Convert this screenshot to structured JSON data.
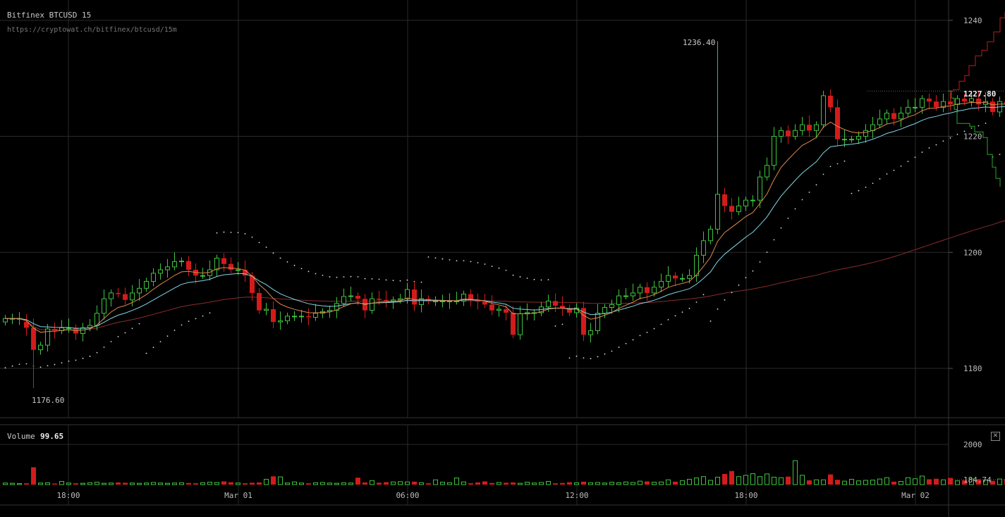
{
  "header": {
    "title": "Bitfinex BTCUSD 15",
    "url": "https://cryptowat.ch/bitfinex/btcusd/15m"
  },
  "volume_panel": {
    "label": "Volume",
    "value": "99.65",
    "close_icon": "close-icon"
  },
  "colors": {
    "up": "#3ec43e",
    "down": "#d41b1b",
    "ema_fast": "#e0894a",
    "ema_mid": "#7fd6e6",
    "sma_slow": "#8a2c2c",
    "psar": "#dddddd",
    "grid": "#2a2a2a",
    "background": "#000000"
  },
  "chart_data": {
    "type": "candlestick",
    "title": "Bitfinex BTCUSD 15",
    "y_ticks": [
      "1240",
      "1220",
      "1200",
      "1180"
    ],
    "y_tick_values": [
      1240,
      1220,
      1200,
      1180
    ],
    "ylim": [
      1171.5,
      1243.5
    ],
    "current_price": "1227.80",
    "annotations": {
      "high": "1236.40",
      "low": "1176.60"
    },
    "x_ticks": [
      "18:00",
      "Mar 01",
      "06:00",
      "12:00",
      "18:00",
      "Mar 02"
    ],
    "candles": {
      "open": [
        1188.0,
        1188.5,
        1188.6,
        1188.0,
        1187.0,
        1183.2,
        1184.0,
        1186.8,
        1186.5,
        1187.0,
        1187.0,
        1186.0,
        1187.0,
        1187.4,
        1189.5,
        1192.0,
        1193.0,
        1192.8,
        1191.8,
        1193.0,
        1193.8,
        1195.0,
        1196.4,
        1197.0,
        1197.5,
        1198.4,
        1198.5,
        1197.0,
        1196.0,
        1196.0,
        1197.0,
        1199.0,
        1198.0,
        1197.0,
        1197.0,
        1196.0,
        1193.0,
        1190.0,
        1190.2,
        1188.0,
        1188.2,
        1189.0,
        1189.0,
        1189.0,
        1188.8,
        1189.5,
        1189.8,
        1190.0,
        1191.2,
        1192.4,
        1192.5,
        1192.0,
        1190.0,
        1192.0,
        1191.8,
        1191.6,
        1191.8,
        1192.0,
        1193.6,
        1191.0,
        1192.0,
        1191.6,
        1191.6,
        1191.6,
        1191.6,
        1191.6,
        1192.8,
        1191.8,
        1191.5,
        1191.0,
        1190.0,
        1190.2,
        1189.6,
        1185.8,
        1189.4,
        1189.6,
        1189.6,
        1190.6,
        1191.6,
        1190.8,
        1190.4,
        1189.6,
        1190.4,
        1185.8,
        1186.5,
        1189.5,
        1190.5,
        1191.0,
        1192.5,
        1192.5,
        1193.0,
        1194.0,
        1193.0,
        1194.0,
        1195.0,
        1196.0,
        1195.5,
        1195.5,
        1196.0,
        1199.5,
        1202.0,
        1204.0,
        1210.0,
        1208.0,
        1207.0,
        1208.0,
        1209.0,
        1209.0,
        1213.0,
        1215.0,
        1220.0,
        1221.0,
        1220.0,
        1221.0,
        1222.0,
        1221.0,
        1222.0,
        1227.0,
        1225.0,
        1219.5,
        1219.5,
        1219.5,
        1220.0,
        1221.0,
        1222.0,
        1223.0,
        1224.0,
        1223.0,
        1224.0,
        1225.0,
        1225.0,
        1226.5,
        1226.0,
        1225.0,
        1226.0,
        1225.5,
        1226.5,
        1226.0,
        1226.5,
        1225.5,
        1226.0,
        1224.2,
        1226.0,
        1225.5,
        1226.0,
        1226.0,
        1225.0,
        1224.5,
        1223.0,
        1223.0,
        1224.0,
        1224.5,
        1225.0,
        1225.8,
        1226.5
      ],
      "close": [
        1188.6,
        1188.6,
        1188.6,
        1187.0,
        1183.2,
        1184.0,
        1186.8,
        1186.5,
        1187.0,
        1187.0,
        1186.0,
        1187.0,
        1187.4,
        1189.5,
        1192.0,
        1193.0,
        1192.8,
        1191.8,
        1193.0,
        1193.8,
        1195.0,
        1196.4,
        1197.0,
        1197.5,
        1198.4,
        1198.5,
        1197.0,
        1196.0,
        1196.0,
        1197.0,
        1199.0,
        1198.0,
        1197.0,
        1197.0,
        1196.0,
        1193.0,
        1190.0,
        1190.2,
        1188.0,
        1188.2,
        1189.0,
        1189.0,
        1189.0,
        1188.8,
        1189.5,
        1189.8,
        1190.0,
        1191.2,
        1192.4,
        1192.5,
        1192.0,
        1190.0,
        1192.0,
        1191.8,
        1191.6,
        1191.8,
        1192.0,
        1193.6,
        1191.0,
        1192.0,
        1191.6,
        1191.6,
        1191.6,
        1191.6,
        1191.6,
        1192.8,
        1191.8,
        1191.5,
        1191.0,
        1190.0,
        1190.2,
        1189.6,
        1185.8,
        1189.4,
        1189.6,
        1189.6,
        1190.6,
        1191.6,
        1190.8,
        1190.4,
        1189.6,
        1190.4,
        1185.8,
        1186.5,
        1189.5,
        1190.5,
        1191.0,
        1192.5,
        1192.5,
        1193.0,
        1194.0,
        1193.0,
        1194.0,
        1195.0,
        1196.0,
        1195.5,
        1195.5,
        1196.0,
        1199.5,
        1202.0,
        1204.0,
        1210.0,
        1208.0,
        1207.0,
        1208.0,
        1209.0,
        1209.0,
        1213.0,
        1215.0,
        1220.0,
        1221.0,
        1220.0,
        1221.0,
        1222.0,
        1221.0,
        1222.0,
        1227.0,
        1225.0,
        1219.5,
        1219.5,
        1219.5,
        1220.0,
        1221.0,
        1222.0,
        1223.0,
        1224.0,
        1223.0,
        1224.0,
        1225.0,
        1225.0,
        1226.5,
        1226.0,
        1225.0,
        1226.0,
        1225.5,
        1226.5,
        1226.0,
        1226.5,
        1225.5,
        1226.0,
        1224.2,
        1226.0,
        1225.5,
        1226.0,
        1226.0,
        1225.0,
        1224.5,
        1223.0,
        1223.0,
        1224.0,
        1224.5,
        1225.0,
        1225.8,
        1226.5,
        1227.8
      ]
    },
    "volume_ticks": [
      "2000",
      "184.74"
    ],
    "volume_tick_values": [
      2000,
      184.74
    ],
    "volume": [
      60,
      50,
      40,
      50,
      650,
      60,
      70,
      40,
      120,
      60,
      50,
      50,
      70,
      90,
      50,
      60,
      80,
      70,
      60,
      50,
      60,
      80,
      60,
      50,
      60,
      70,
      60,
      50,
      70,
      90,
      80,
      120,
      90,
      60,
      50,
      70,
      80,
      200,
      310,
      290,
      60,
      100,
      60,
      50,
      70,
      80,
      60,
      50,
      70,
      60,
      260,
      80,
      150,
      70,
      90,
      100,
      110,
      100,
      110,
      70,
      50,
      180,
      90,
      70,
      250,
      100,
      50,
      80,
      120,
      60,
      80,
      70,
      80,
      50,
      90,
      60,
      80,
      120,
      50,
      60,
      90,
      70,
      110,
      70,
      80,
      60,
      90,
      70,
      100,
      80,
      130,
      120,
      90,
      100,
      180,
      110,
      150,
      200,
      250,
      300,
      160,
      280,
      400,
      510,
      300,
      350,
      410,
      300,
      400,
      280,
      260,
      300,
      900,
      350,
      160,
      180,
      180,
      380,
      180,
      130,
      200,
      140,
      160,
      170,
      210,
      260,
      110,
      120,
      260,
      220,
      320,
      200,
      220,
      180,
      250,
      140,
      160,
      210,
      200,
      170,
      140,
      210,
      200,
      170,
      200,
      160,
      180,
      200,
      140,
      120,
      180,
      160,
      130,
      110,
      140,
      200
    ]
  }
}
